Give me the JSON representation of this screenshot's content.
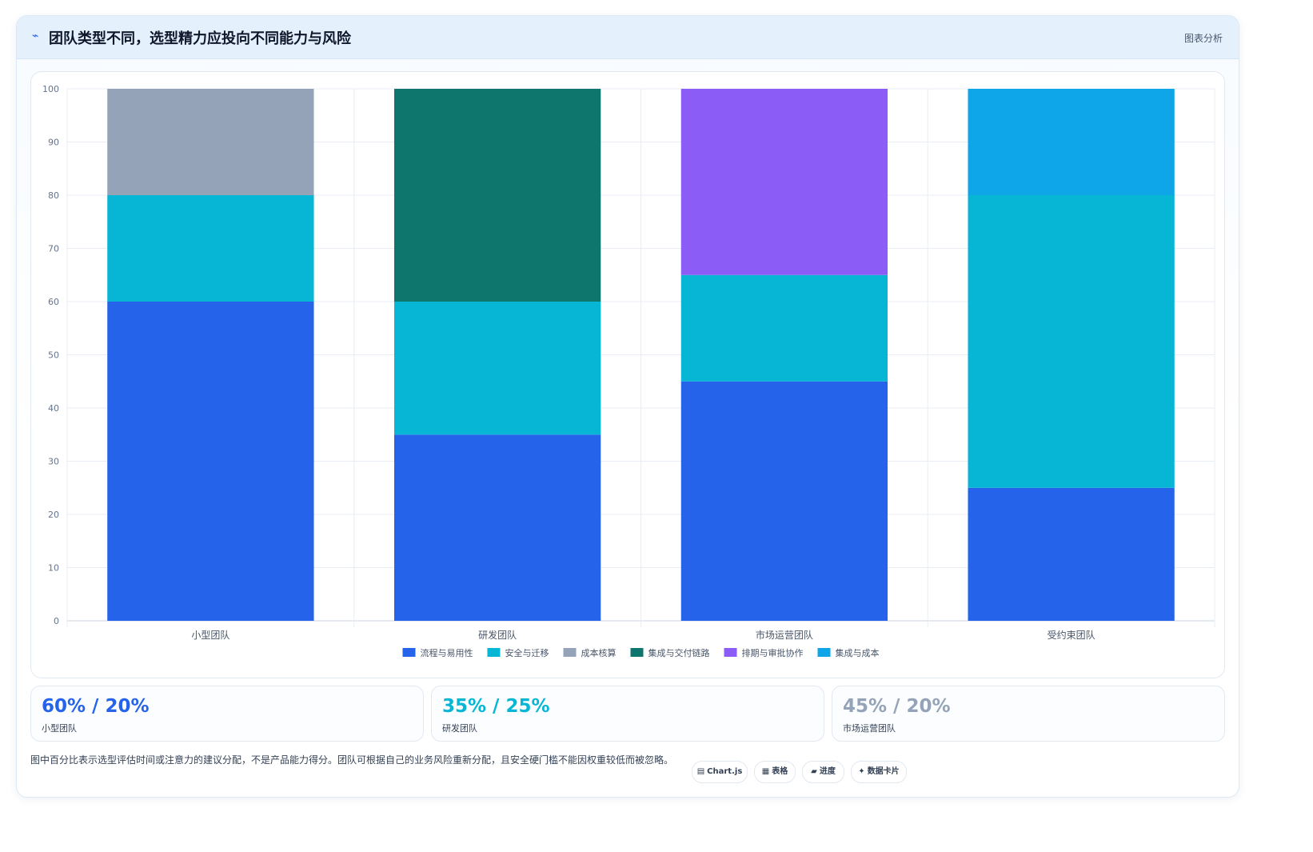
{
  "header": {
    "icon": "trend-line-icon",
    "title": "团队类型不同，选型精力应投向不同能力与风险",
    "tag": "图表分析"
  },
  "chart_data": {
    "type": "bar",
    "stacked": true,
    "categories": [
      "小型团队",
      "研发团队",
      "市场运营团队",
      "受约束团队"
    ],
    "ylim": [
      0,
      100
    ],
    "yticks": [
      0,
      10,
      20,
      30,
      40,
      50,
      60,
      70,
      80,
      90,
      100
    ],
    "grid": true,
    "legend_position": "bottom",
    "series": [
      {
        "name": "流程与易用性",
        "color": "#2563eb",
        "values": [
          60,
          35,
          45,
          25
        ]
      },
      {
        "name": "安全与迁移",
        "color": "#06b6d4",
        "values": [
          20,
          25,
          20,
          55
        ]
      },
      {
        "name": "成本核算",
        "color": "#94a3b8",
        "values": [
          20,
          0,
          0,
          0
        ]
      },
      {
        "name": "集成与交付链路",
        "color": "#0f766e",
        "values": [
          0,
          40,
          0,
          0
        ]
      },
      {
        "name": "排期与审批协作",
        "color": "#8b5cf6",
        "values": [
          0,
          0,
          35,
          0
        ]
      },
      {
        "name": "集成与成本",
        "color": "#0ea5e9",
        "values": [
          0,
          0,
          0,
          20
        ]
      }
    ]
  },
  "stats": [
    {
      "value": "60% / 20%",
      "label": "小型团队",
      "color": "#2563eb"
    },
    {
      "value": "35% / 25%",
      "label": "研发团队",
      "color": "#06b6d4"
    },
    {
      "value": "45% / 20%",
      "label": "市场运营团队",
      "color": "#94a3b8"
    }
  ],
  "note": "图中百分比表示选型评估时间或注意力的建议分配，不是产品能力得分。团队可根据自己的业务风险重新分配，且安全硬门槛不能因权重较低而被忽略。",
  "chips": [
    {
      "icon": "chart-icon",
      "glyph": "▤",
      "label": "Chart.js"
    },
    {
      "icon": "table-icon",
      "glyph": "▦",
      "label": "表格"
    },
    {
      "icon": "progress-icon",
      "glyph": "▰",
      "label": "进度"
    },
    {
      "icon": "sparkle-icon",
      "glyph": "✦",
      "label": "数据卡片"
    }
  ]
}
